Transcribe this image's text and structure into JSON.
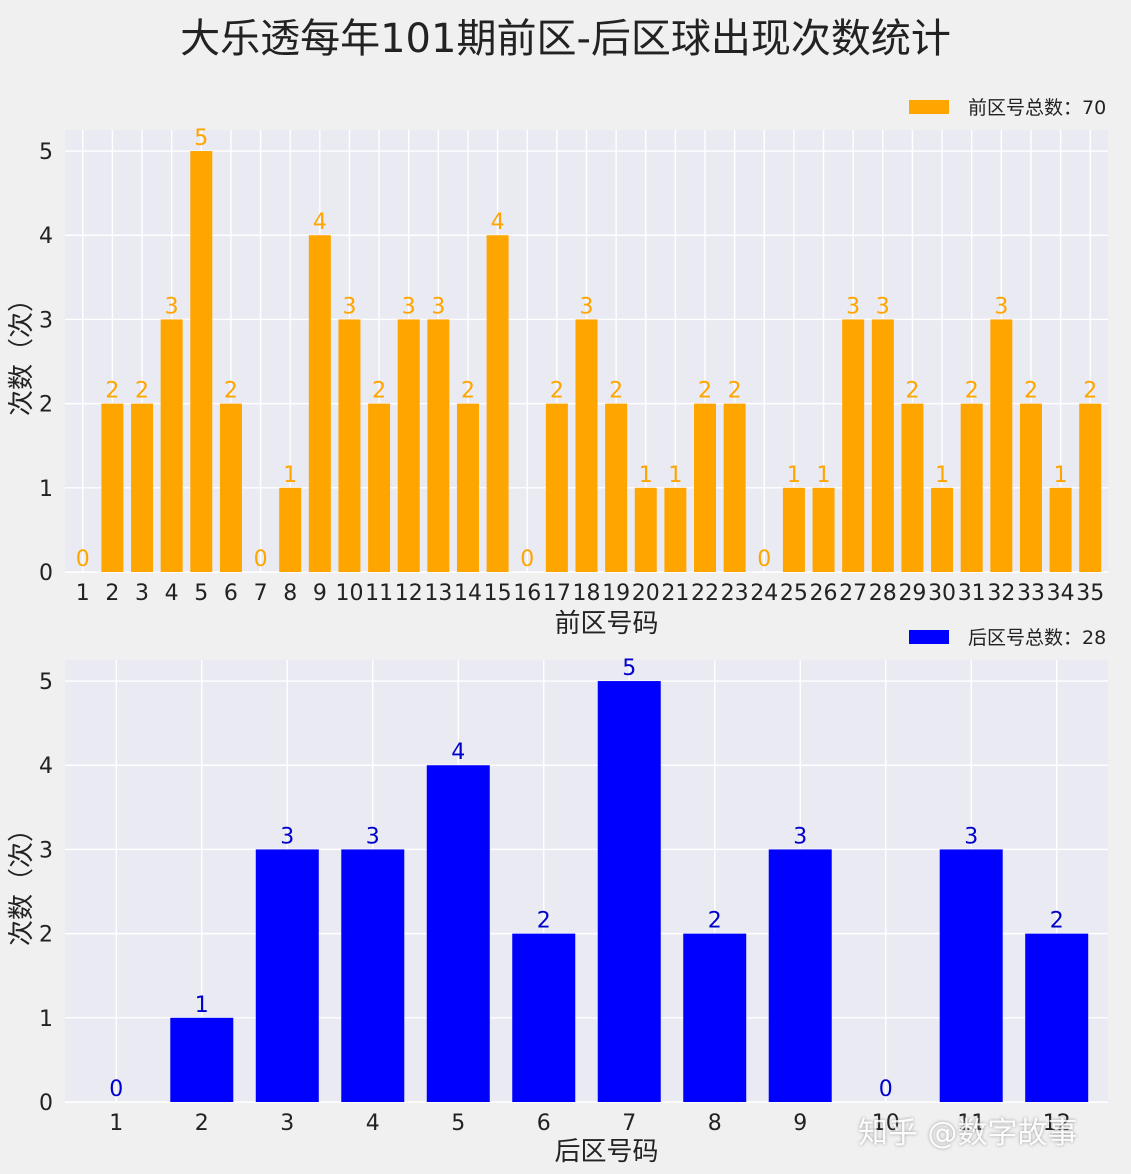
{
  "title": "大乐透每年101期前区-后区球出现次数统计",
  "watermark": "知乎 @数字故事",
  "chart_data": [
    {
      "type": "bar",
      "categories": [
        "1",
        "2",
        "3",
        "4",
        "5",
        "6",
        "7",
        "8",
        "9",
        "10",
        "11",
        "12",
        "13",
        "14",
        "15",
        "16",
        "17",
        "18",
        "19",
        "20",
        "21",
        "22",
        "23",
        "24",
        "25",
        "26",
        "27",
        "28",
        "29",
        "30",
        "31",
        "32",
        "33",
        "34",
        "35"
      ],
      "values": [
        0,
        2,
        2,
        3,
        5,
        2,
        0,
        1,
        4,
        3,
        2,
        3,
        3,
        2,
        4,
        0,
        2,
        3,
        2,
        1,
        1,
        2,
        2,
        0,
        1,
        1,
        3,
        3,
        2,
        1,
        2,
        3,
        2,
        1,
        2
      ],
      "xlabel": "前区号码",
      "ylabel": "次数（次）",
      "legend": "前区号总数：70",
      "legend_position": "top-right",
      "yticks": [
        0,
        1,
        2,
        3,
        4,
        5
      ],
      "ylim": [
        0,
        5.25
      ],
      "color": "#ffa500",
      "grid": true
    },
    {
      "type": "bar",
      "categories": [
        "1",
        "2",
        "3",
        "4",
        "5",
        "6",
        "7",
        "8",
        "9",
        "10",
        "11",
        "12"
      ],
      "values": [
        0,
        1,
        3,
        3,
        4,
        2,
        5,
        2,
        3,
        0,
        3,
        2
      ],
      "xlabel": "后区号码",
      "ylabel": "次数（次）",
      "legend": "后区号总数：28",
      "legend_position": "top-right",
      "yticks": [
        0,
        1,
        2,
        3,
        4,
        5
      ],
      "ylim": [
        0,
        5.25
      ],
      "color": "#0000ff",
      "label_color": "#0000cc",
      "grid": true
    }
  ]
}
